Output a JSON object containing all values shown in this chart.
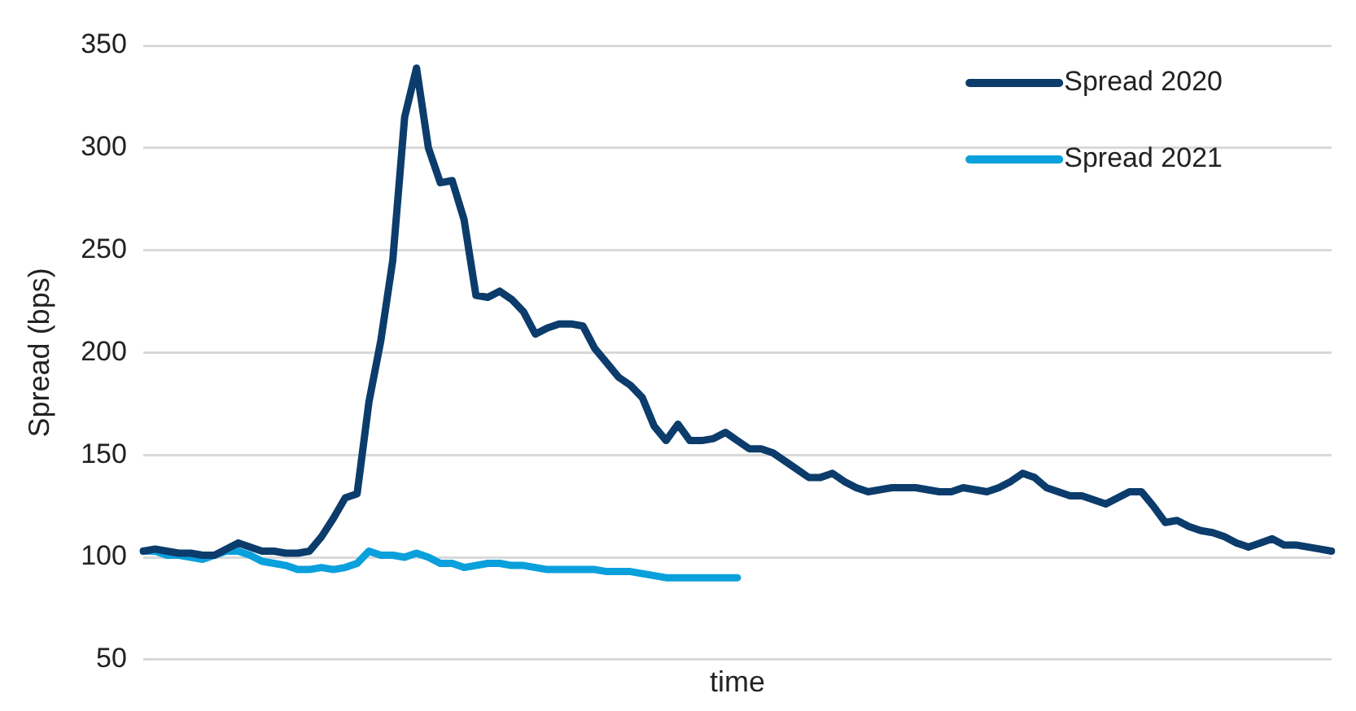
{
  "chart_data": {
    "type": "line",
    "xlabel": "time",
    "ylabel": "Spread (bps)",
    "categories": [
      null,
      null,
      null,
      null,
      null,
      null,
      null,
      null,
      null,
      null,
      null,
      null,
      null,
      null,
      null,
      null,
      null,
      null,
      null,
      null,
      null,
      null,
      null,
      null,
      null,
      null,
      null,
      null,
      null,
      null,
      null,
      null,
      null,
      null,
      null,
      null,
      null,
      null,
      null,
      null,
      null,
      null,
      null,
      null,
      null,
      null,
      null,
      null,
      null,
      null,
      null,
      null,
      null,
      null,
      null,
      null,
      null,
      null,
      null,
      null,
      null,
      null,
      null,
      null,
      null,
      null,
      null,
      null,
      null,
      null,
      null,
      null,
      null,
      null,
      null,
      null,
      null,
      null,
      null,
      null,
      null,
      null,
      null,
      null,
      null,
      null,
      null,
      null,
      null,
      null,
      null,
      null,
      null,
      null,
      null,
      null,
      null,
      null,
      null,
      null,
      null
    ],
    "series": [
      {
        "name": "Spread 2020",
        "color": "#0b3c6b",
        "values": [
          103,
          104,
          103,
          102,
          102,
          101,
          101,
          104,
          107,
          105,
          103,
          103,
          102,
          102,
          103,
          110,
          119,
          129,
          131,
          176,
          206,
          245,
          315,
          339,
          300,
          283,
          284,
          265,
          228,
          227,
          230,
          226,
          220,
          209,
          212,
          214,
          214,
          213,
          202,
          195,
          188,
          184,
          178,
          164,
          157,
          165,
          157,
          157,
          158,
          161,
          157,
          153,
          153,
          151,
          147,
          143,
          139,
          139,
          141,
          137,
          134,
          132,
          133,
          134,
          134,
          134,
          133,
          132,
          132,
          134,
          133,
          132,
          134,
          137,
          141,
          139,
          134,
          132,
          130,
          130,
          128,
          126,
          129,
          132,
          132,
          125,
          117,
          118,
          115,
          113,
          112,
          110,
          107,
          105,
          107,
          109,
          106,
          106,
          105,
          104,
          103
        ]
      },
      {
        "name": "Spread 2021",
        "color": "#0aa0dc",
        "values": [
          103,
          103,
          101,
          101,
          100,
          99,
          101,
          103,
          103,
          101,
          98,
          97,
          96,
          94,
          94,
          95,
          94,
          95,
          97,
          103,
          101,
          101,
          100,
          102,
          100,
          97,
          97,
          95,
          96,
          97,
          97,
          96,
          96,
          95,
          94,
          94,
          94,
          94,
          94,
          93,
          93,
          93,
          92,
          91,
          90,
          90,
          90,
          90,
          90,
          90,
          90,
          null,
          null,
          null,
          null,
          null,
          null,
          null,
          null,
          null,
          null,
          null,
          null,
          null,
          null,
          null,
          null,
          null,
          null,
          null,
          null,
          null,
          null,
          null,
          null,
          null,
          null,
          null,
          null,
          null,
          null,
          null,
          null,
          null,
          null,
          null,
          null,
          null,
          null,
          null,
          null,
          null,
          null,
          null,
          null,
          null,
          null,
          null,
          null,
          null,
          null
        ]
      }
    ],
    "ylim": [
      50,
      350
    ],
    "yticks": [
      50,
      100,
      150,
      200,
      250,
      300,
      350
    ],
    "grid": "y",
    "legend": "top right",
    "tick_labels": "y",
    "line_style": "solid",
    "marker": "none"
  }
}
